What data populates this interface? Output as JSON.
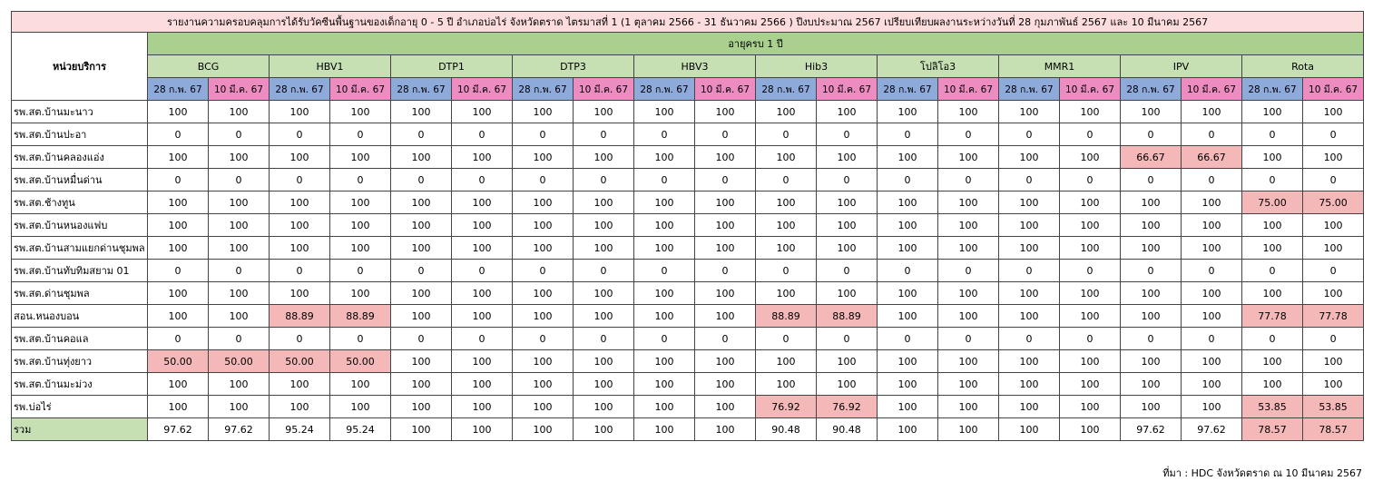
{
  "title": "รายงานความครอบคลุมการได้รับวัคซีนพื้นฐานของเด็กอายุ 0 - 5 ปี อำเภอบ่อไร่ จังหวัดตราด ไตรมาสที่ 1 (1 ตุลาคม 2566 - 31 ธันวาคม 2566 ) ปีงบประมาณ 2567  เปรียบเทียบผลงานระหว่างวันที่ 28 กุมภาพันธ์ 2567 และ 10 มีนาคม 2567",
  "unit_header": "หน่วยบริการ",
  "age_group": "อายุครบ 1 ปี",
  "vaccines": [
    "BCG",
    "HBV1",
    "DTP1",
    "DTP3",
    "HBV3",
    "Hib3",
    "โปลิโอ3",
    "MMR1",
    "IPV",
    "Rota"
  ],
  "dates": [
    "28 ก.พ. 67",
    "10 มี.ค. 67"
  ],
  "rows": [
    {
      "unit": "รพ.สต.บ้านมะนาว",
      "values": [
        "100",
        "100",
        "100",
        "100",
        "100",
        "100",
        "100",
        "100",
        "100",
        "100",
        "100",
        "100",
        "100",
        "100",
        "100",
        "100",
        "100",
        "100",
        "100",
        "100"
      ]
    },
    {
      "unit": "รพ.สต.บ้านปะอา",
      "values": [
        "0",
        "0",
        "0",
        "0",
        "0",
        "0",
        "0",
        "0",
        "0",
        "0",
        "0",
        "0",
        "0",
        "0",
        "0",
        "0",
        "0",
        "0",
        "0",
        "0"
      ]
    },
    {
      "unit": "รพ.สต.บ้านคลองแอ่ง",
      "values": [
        "100",
        "100",
        "100",
        "100",
        "100",
        "100",
        "100",
        "100",
        "100",
        "100",
        "100",
        "100",
        "100",
        "100",
        "100",
        "100",
        "66.67",
        "66.67",
        "100",
        "100"
      ]
    },
    {
      "unit": "รพ.สต.บ้านหมื่นด่าน",
      "values": [
        "0",
        "0",
        "0",
        "0",
        "0",
        "0",
        "0",
        "0",
        "0",
        "0",
        "0",
        "0",
        "0",
        "0",
        "0",
        "0",
        "0",
        "0",
        "0",
        "0"
      ]
    },
    {
      "unit": "รพ.สต.ช้างทูน",
      "values": [
        "100",
        "100",
        "100",
        "100",
        "100",
        "100",
        "100",
        "100",
        "100",
        "100",
        "100",
        "100",
        "100",
        "100",
        "100",
        "100",
        "100",
        "100",
        "75.00",
        "75.00"
      ]
    },
    {
      "unit": "รพ.สต.บ้านหนองแฟบ",
      "values": [
        "100",
        "100",
        "100",
        "100",
        "100",
        "100",
        "100",
        "100",
        "100",
        "100",
        "100",
        "100",
        "100",
        "100",
        "100",
        "100",
        "100",
        "100",
        "100",
        "100"
      ]
    },
    {
      "unit": "รพ.สต.บ้านสามแยกด่านชุมพล",
      "values": [
        "100",
        "100",
        "100",
        "100",
        "100",
        "100",
        "100",
        "100",
        "100",
        "100",
        "100",
        "100",
        "100",
        "100",
        "100",
        "100",
        "100",
        "100",
        "100",
        "100"
      ]
    },
    {
      "unit": "รพ.สต.บ้านทับทิมสยาม 01",
      "values": [
        "0",
        "0",
        "0",
        "0",
        "0",
        "0",
        "0",
        "0",
        "0",
        "0",
        "0",
        "0",
        "0",
        "0",
        "0",
        "0",
        "0",
        "0",
        "0",
        "0"
      ]
    },
    {
      "unit": "รพ.สต.ด่านชุมพล",
      "values": [
        "100",
        "100",
        "100",
        "100",
        "100",
        "100",
        "100",
        "100",
        "100",
        "100",
        "100",
        "100",
        "100",
        "100",
        "100",
        "100",
        "100",
        "100",
        "100",
        "100"
      ]
    },
    {
      "unit": "สอน.หนองบอน",
      "values": [
        "100",
        "100",
        "88.89",
        "88.89",
        "100",
        "100",
        "100",
        "100",
        "100",
        "100",
        "88.89",
        "88.89",
        "100",
        "100",
        "100",
        "100",
        "100",
        "100",
        "77.78",
        "77.78"
      ]
    },
    {
      "unit": "รพ.สต.บ้านคอแล",
      "values": [
        "0",
        "0",
        "0",
        "0",
        "0",
        "0",
        "0",
        "0",
        "0",
        "0",
        "0",
        "0",
        "0",
        "0",
        "0",
        "0",
        "0",
        "0",
        "0",
        "0"
      ]
    },
    {
      "unit": "รพ.สต.บ้านทุ่งยาว",
      "values": [
        "50.00",
        "50.00",
        "50.00",
        "50.00",
        "100",
        "100",
        "100",
        "100",
        "100",
        "100",
        "100",
        "100",
        "100",
        "100",
        "100",
        "100",
        "100",
        "100",
        "100",
        "100"
      ]
    },
    {
      "unit": "รพ.สต.บ้านมะม่วง",
      "values": [
        "100",
        "100",
        "100",
        "100",
        "100",
        "100",
        "100",
        "100",
        "100",
        "100",
        "100",
        "100",
        "100",
        "100",
        "100",
        "100",
        "100",
        "100",
        "100",
        "100"
      ]
    },
    {
      "unit": "รพ.บ่อไร่",
      "values": [
        "100",
        "100",
        "100",
        "100",
        "100",
        "100",
        "100",
        "100",
        "100",
        "100",
        "76.92",
        "76.92",
        "100",
        "100",
        "100",
        "100",
        "100",
        "100",
        "53.85",
        "53.85"
      ]
    }
  ],
  "total": {
    "label": "รวม",
    "values": [
      "97.62",
      "97.62",
      "95.24",
      "95.24",
      "100",
      "100",
      "100",
      "100",
      "100",
      "100",
      "90.48",
      "90.48",
      "100",
      "100",
      "100",
      "100",
      "97.62",
      "97.62",
      "78.57",
      "78.57"
    ]
  },
  "source": "ที่มา : HDC จังหวัดตราด ณ 10 มีนาคม  2567"
}
